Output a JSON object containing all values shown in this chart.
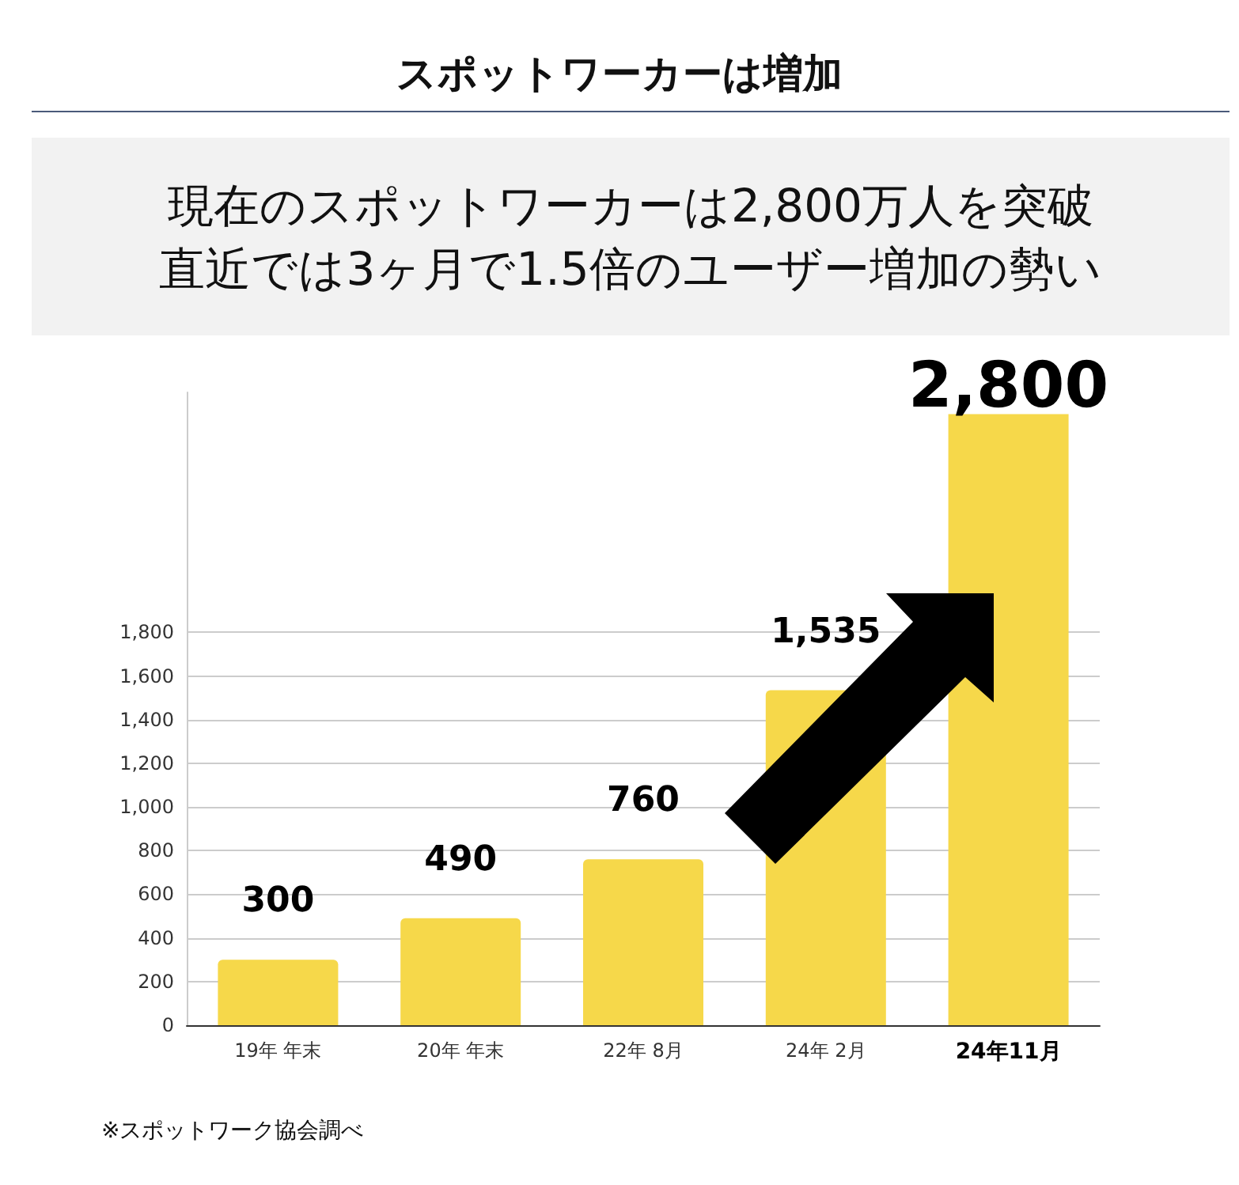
{
  "chart_data": {
    "type": "bar",
    "title": "スポットワーカーは増加",
    "subtitle": "現在のスポットワーカーは2,800万人を突破",
    "categories": [
      "19年 年末",
      "20年 年末",
      "22年 8月",
      "24年 2月",
      "24年11月"
    ],
    "values": [
      300,
      490,
      760,
      1535,
      2800
    ],
    "color": "#f6d84a",
    "value_labels": [
      "300",
      "490",
      "760",
      "1,535",
      "2,800"
    ],
    "ylim": [
      0,
      2900
    ],
    "yticks": [
      0,
      200,
      400,
      600,
      800,
      {
        "value": 1000,
        "label": "1,000"
      },
      {
        "value": 1200,
        "label": "1,200"
      },
      {
        "value": 1400,
        "label": "1,400"
      },
      {
        "value": 1600,
        "label": "1,600"
      },
      {
        "value": 1800,
        "label": "1,800"
      }
    ],
    "grid": "y",
    "annotations": [
      "直近では3ヶ月で1.5倍のユーザー増加の勢い",
      "※スポットワーク協会調べ"
    ]
  }
}
